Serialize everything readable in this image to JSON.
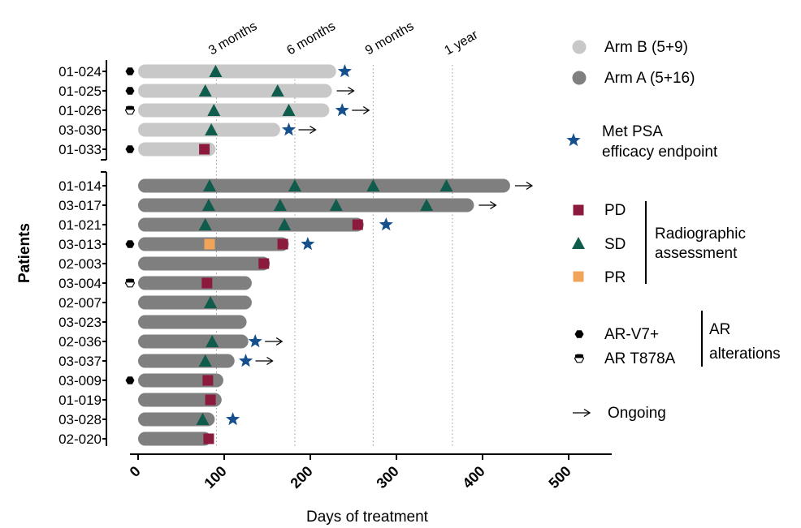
{
  "chart_data": {
    "type": "swimmer",
    "xlabel": "Days of treatment",
    "ylabel": "Patients",
    "xlim": [
      0,
      550
    ],
    "xticks": [
      0,
      100,
      200,
      300,
      400,
      500
    ],
    "milestones": [
      {
        "label": "3 months",
        "day": 91
      },
      {
        "label": "6 months",
        "day": 182
      },
      {
        "label": "9 months",
        "day": 273
      },
      {
        "label": "1 year",
        "day": 365
      }
    ],
    "colors": {
      "arm_b": "#c8c8c8",
      "arm_a": "#7f7f7f",
      "pd": "#8b1a3c",
      "sd": "#0f5c4c",
      "pr": "#f0a45a",
      "psa_star": "#15508c"
    },
    "patients": [
      {
        "id": "01-024",
        "arm": "B",
        "days": 230,
        "ar": "v7",
        "sd": [
          90
        ],
        "pd": [],
        "pr": [],
        "psa": [
          240
        ],
        "ongoing": false
      },
      {
        "id": "01-025",
        "arm": "B",
        "days": 225,
        "ar": "v7",
        "sd": [
          78,
          162
        ],
        "pd": [],
        "pr": [],
        "psa": [],
        "ongoing": true
      },
      {
        "id": "01-026",
        "arm": "B",
        "days": 222,
        "ar": "t878a",
        "sd": [
          88,
          175
        ],
        "pd": [],
        "pr": [],
        "psa": [
          237
        ],
        "ongoing": true
      },
      {
        "id": "03-030",
        "arm": "B",
        "days": 165,
        "ar": null,
        "sd": [
          85
        ],
        "pd": [],
        "pr": [],
        "psa": [
          175
        ],
        "ongoing": true
      },
      {
        "id": "01-033",
        "arm": "B",
        "days": 90,
        "ar": "v7",
        "sd": [],
        "pd": [
          77
        ],
        "pr": [],
        "psa": [],
        "ongoing": false
      },
      {
        "id": "01-014",
        "arm": "A",
        "days": 432,
        "ar": null,
        "sd": [
          83,
          182,
          273,
          358
        ],
        "pd": [],
        "pr": [],
        "psa": [],
        "ongoing": true
      },
      {
        "id": "03-017",
        "arm": "A",
        "days": 390,
        "ar": null,
        "sd": [
          82,
          165,
          230,
          335
        ],
        "pd": [],
        "pr": [],
        "psa": [],
        "ongoing": true
      },
      {
        "id": "01-021",
        "arm": "A",
        "days": 262,
        "ar": null,
        "sd": [
          78,
          170
        ],
        "pd": [
          255
        ],
        "pr": [],
        "psa": [
          288
        ],
        "ongoing": false
      },
      {
        "id": "03-013",
        "arm": "A",
        "days": 175,
        "ar": "v7",
        "sd": [],
        "pd": [
          168
        ],
        "pr": [
          83
        ],
        "psa": [
          197
        ],
        "ongoing": false
      },
      {
        "id": "02-003",
        "arm": "A",
        "days": 153,
        "ar": null,
        "sd": [],
        "pd": [
          146
        ],
        "pr": [],
        "psa": [],
        "ongoing": false
      },
      {
        "id": "03-004",
        "arm": "A",
        "days": 132,
        "ar": "t878a",
        "sd": [],
        "pd": [
          80
        ],
        "pr": [],
        "psa": [],
        "ongoing": false
      },
      {
        "id": "02-007",
        "arm": "A",
        "days": 132,
        "ar": null,
        "sd": [
          84
        ],
        "pd": [],
        "pr": [],
        "psa": [],
        "ongoing": false
      },
      {
        "id": "03-023",
        "arm": "A",
        "days": 126,
        "ar": null,
        "sd": [],
        "pd": [],
        "pr": [],
        "psa": [],
        "ongoing": false
      },
      {
        "id": "02-036",
        "arm": "A",
        "days": 128,
        "ar": null,
        "sd": [
          86
        ],
        "pd": [],
        "pr": [],
        "psa": [
          136
        ],
        "ongoing": true
      },
      {
        "id": "03-037",
        "arm": "A",
        "days": 112,
        "ar": null,
        "sd": [
          78
        ],
        "pd": [],
        "pr": [],
        "psa": [
          125
        ],
        "ongoing": true
      },
      {
        "id": "03-009",
        "arm": "A",
        "days": 99,
        "ar": "v7",
        "sd": [],
        "pd": [
          81
        ],
        "pr": [],
        "psa": [],
        "ongoing": false
      },
      {
        "id": "01-019",
        "arm": "A",
        "days": 97,
        "ar": null,
        "sd": [],
        "pd": [
          84
        ],
        "pr": [],
        "psa": [],
        "ongoing": false
      },
      {
        "id": "03-028",
        "arm": "A",
        "days": 89,
        "ar": null,
        "sd": [
          75
        ],
        "pd": [],
        "pr": [],
        "psa": [
          110
        ],
        "ongoing": false
      },
      {
        "id": "02-020",
        "arm": "A",
        "days": 85,
        "ar": null,
        "sd": [],
        "pd": [
          82
        ],
        "pr": [],
        "psa": [],
        "ongoing": false
      }
    ],
    "legend": {
      "arm_b": "Arm B (5+9)",
      "arm_a": "Arm A (5+16)",
      "psa_1": "Met PSA",
      "psa_2": "efficacy endpoint",
      "pd": "PD",
      "sd": "SD",
      "pr": "PR",
      "radiographic_1": "Radiographic",
      "radiographic_2": "assessment",
      "ar_v7": "AR-V7+",
      "ar_t878a": "AR T878A",
      "ar_group_1": "AR",
      "ar_group_2": "alterations",
      "ongoing": "Ongoing"
    }
  }
}
